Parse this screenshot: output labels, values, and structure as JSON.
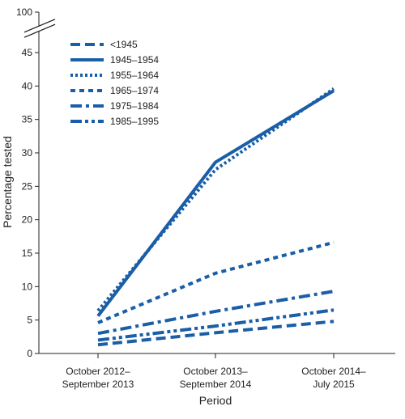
{
  "chart_data": {
    "type": "line",
    "title": "",
    "xlabel": "Period",
    "ylabel": "Percentage tested",
    "categories": [
      [
        "October 2012–",
        "September 2013"
      ],
      [
        "October 2013–",
        "September 2014"
      ],
      [
        "October 2014–",
        "July 2015"
      ]
    ],
    "yticks": [
      0,
      5,
      10,
      15,
      20,
      25,
      30,
      35,
      40,
      45
    ],
    "ytick_break_label": 100,
    "ylim": [
      0,
      45
    ],
    "axis_break": true,
    "grid": false,
    "legend_position": "top-left",
    "series": [
      {
        "name": "<1945",
        "values": [
          1.3,
          3.1,
          4.8
        ],
        "dash": "long-dash"
      },
      {
        "name": "1945–1954",
        "values": [
          5.6,
          28.6,
          39.3
        ],
        "dash": "solid"
      },
      {
        "name": "1955–1964",
        "values": [
          6.4,
          27.5,
          39.6
        ],
        "dash": "dot"
      },
      {
        "name": "1965–1974",
        "values": [
          4.6,
          12.0,
          16.6
        ],
        "dash": "dash"
      },
      {
        "name": "1975–1984",
        "values": [
          3.0,
          6.3,
          9.3
        ],
        "dash": "dash-dot"
      },
      {
        "name": "1985–1995",
        "values": [
          2.0,
          4.1,
          6.5
        ],
        "dash": "dash-dot-dot"
      }
    ],
    "color": "#1a5ea8"
  }
}
